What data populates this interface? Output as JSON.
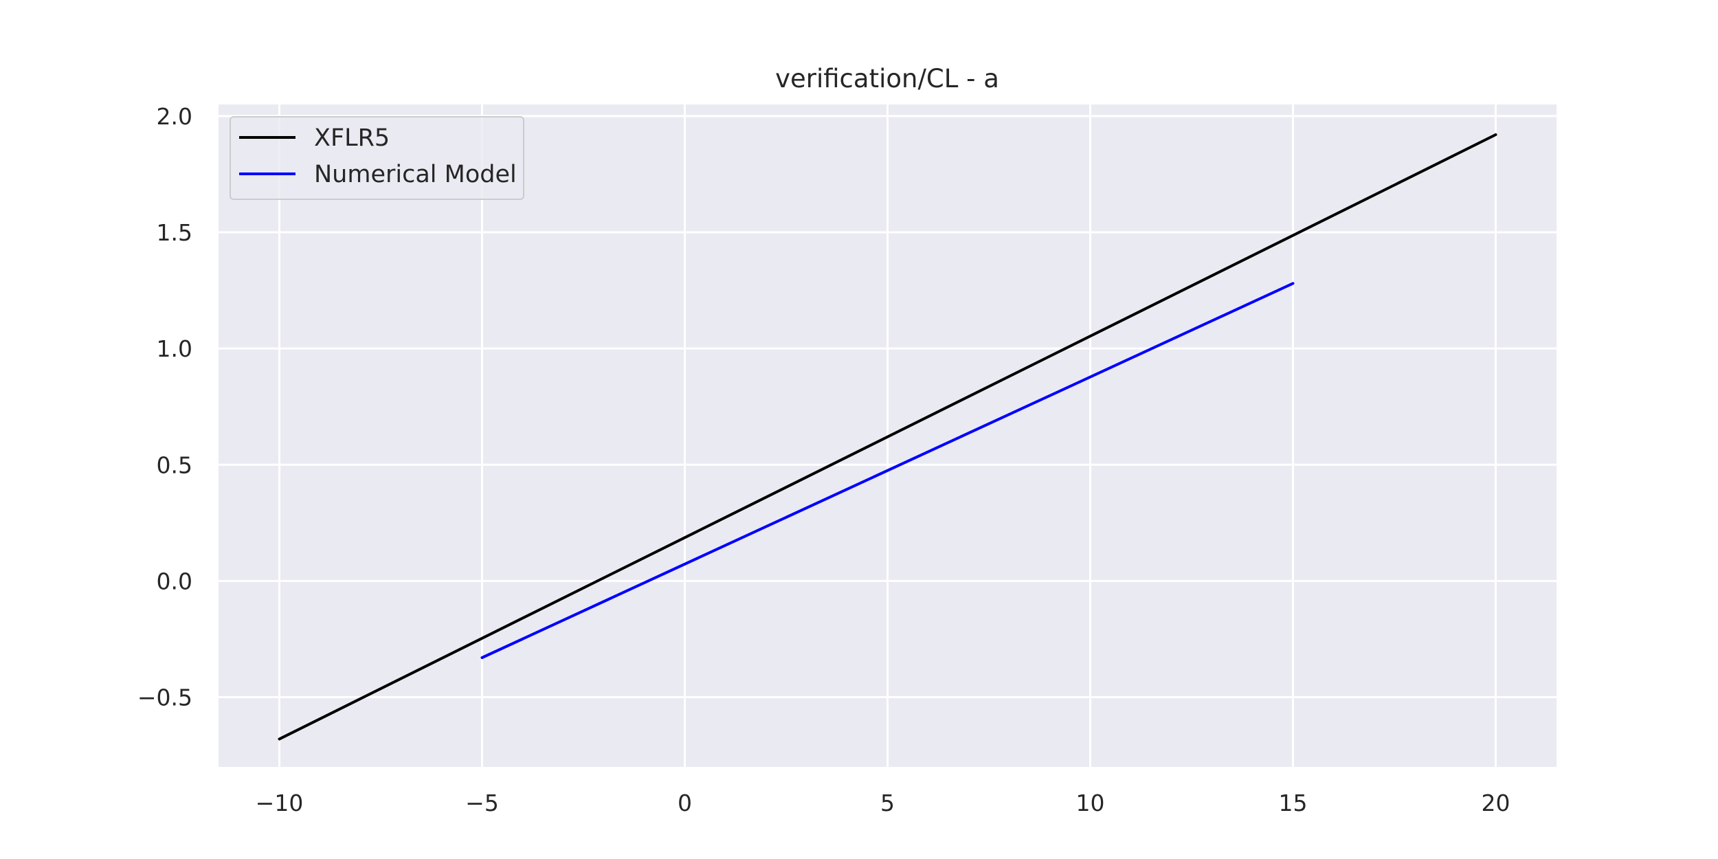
{
  "chart_data": {
    "type": "line",
    "title": "verification/CL - a",
    "xlabel": "",
    "ylabel": "",
    "xlim": [
      -11.5,
      21.5
    ],
    "ylim": [
      -0.8,
      2.05
    ],
    "xticks": [
      -10,
      -5,
      0,
      5,
      10,
      15,
      20
    ],
    "xtick_labels": [
      "−10",
      "−5",
      "0",
      "5",
      "10",
      "15",
      "20"
    ],
    "yticks": [
      -0.5,
      0.0,
      0.5,
      1.0,
      1.5,
      2.0
    ],
    "ytick_labels": [
      "−0.5",
      "0.0",
      "0.5",
      "1.0",
      "1.5",
      "2.0"
    ],
    "grid": true,
    "legend_position": "top-left",
    "background_color": "#eaeaf2",
    "grid_color": "#ffffff",
    "series": [
      {
        "name": "XFLR5",
        "color": "#000000",
        "x": [
          -10,
          20
        ],
        "y": [
          -0.68,
          1.92
        ]
      },
      {
        "name": "Numerical Model",
        "color": "#0000ff",
        "x": [
          -5,
          15
        ],
        "y": [
          -0.33,
          1.28
        ]
      }
    ]
  }
}
